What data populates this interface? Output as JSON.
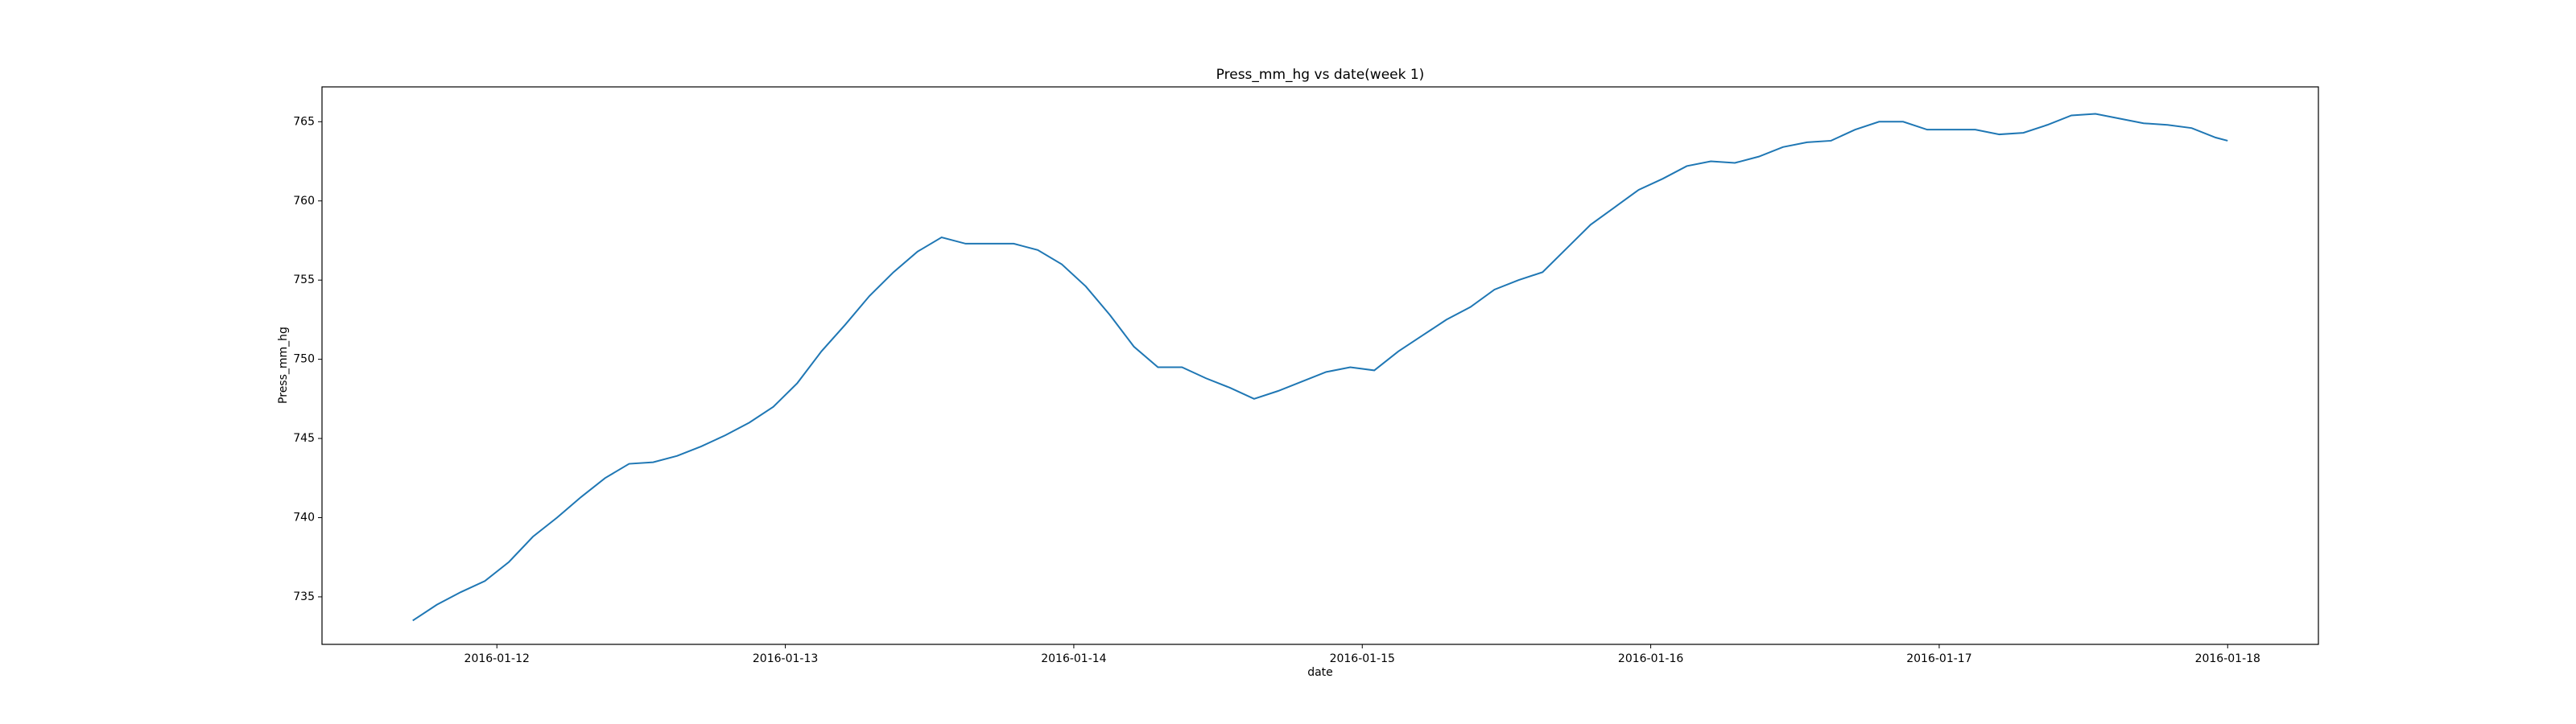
{
  "chart_data": {
    "type": "line",
    "title": "Press_mm_hg vs date(week 1)",
    "x_label": "date",
    "y_label": "Press_mm_hg",
    "x": [
      "2016-01-11T17:00",
      "2016-01-11T19:00",
      "2016-01-11T21:00",
      "2016-01-11T23:00",
      "2016-01-12T01:00",
      "2016-01-12T03:00",
      "2016-01-12T05:00",
      "2016-01-12T07:00",
      "2016-01-12T09:00",
      "2016-01-12T11:00",
      "2016-01-12T13:00",
      "2016-01-12T15:00",
      "2016-01-12T17:00",
      "2016-01-12T19:00",
      "2016-01-12T21:00",
      "2016-01-12T23:00",
      "2016-01-13T01:00",
      "2016-01-13T03:00",
      "2016-01-13T05:00",
      "2016-01-13T07:00",
      "2016-01-13T09:00",
      "2016-01-13T11:00",
      "2016-01-13T13:00",
      "2016-01-13T15:00",
      "2016-01-13T17:00",
      "2016-01-13T19:00",
      "2016-01-13T21:00",
      "2016-01-13T23:00",
      "2016-01-14T01:00",
      "2016-01-14T03:00",
      "2016-01-14T05:00",
      "2016-01-14T07:00",
      "2016-01-14T09:00",
      "2016-01-14T11:00",
      "2016-01-14T13:00",
      "2016-01-14T15:00",
      "2016-01-14T17:00",
      "2016-01-14T19:00",
      "2016-01-14T21:00",
      "2016-01-14T23:00",
      "2016-01-15T01:00",
      "2016-01-15T03:00",
      "2016-01-15T05:00",
      "2016-01-15T07:00",
      "2016-01-15T09:00",
      "2016-01-15T11:00",
      "2016-01-15T13:00",
      "2016-01-15T15:00",
      "2016-01-15T17:00",
      "2016-01-15T19:00",
      "2016-01-15T21:00",
      "2016-01-15T23:00",
      "2016-01-16T01:00",
      "2016-01-16T03:00",
      "2016-01-16T05:00",
      "2016-01-16T07:00",
      "2016-01-16T09:00",
      "2016-01-16T11:00",
      "2016-01-16T13:00",
      "2016-01-16T15:00",
      "2016-01-16T17:00",
      "2016-01-16T19:00",
      "2016-01-16T21:00",
      "2016-01-16T23:00",
      "2016-01-17T01:00",
      "2016-01-17T03:00",
      "2016-01-17T05:00",
      "2016-01-17T07:00",
      "2016-01-17T09:00",
      "2016-01-17T11:00",
      "2016-01-17T13:00",
      "2016-01-17T15:00",
      "2016-01-17T17:00",
      "2016-01-17T19:00",
      "2016-01-17T21:00",
      "2016-01-17T23:00",
      "2016-01-18T00:00"
    ],
    "series": [
      {
        "name": "Press_mm_hg",
        "color": "#1f77b4",
        "values": [
          733.5,
          734.5,
          735.3,
          736.0,
          737.2,
          738.8,
          740.0,
          741.3,
          742.5,
          743.4,
          743.5,
          743.9,
          744.5,
          745.2,
          746.0,
          747.0,
          748.5,
          750.5,
          752.2,
          754.0,
          755.5,
          756.8,
          757.7,
          757.3,
          757.3,
          757.3,
          756.9,
          756.0,
          754.6,
          752.8,
          750.8,
          749.5,
          749.5,
          748.8,
          748.2,
          747.5,
          748.0,
          748.6,
          749.2,
          749.5,
          749.3,
          750.5,
          751.5,
          752.5,
          753.3,
          754.4,
          755.0,
          755.5,
          757.0,
          758.5,
          759.6,
          760.7,
          761.4,
          762.2,
          762.5,
          762.4,
          762.8,
          763.4,
          763.7,
          763.8,
          764.5,
          765.0,
          765.0,
          764.5,
          764.5,
          764.5,
          764.2,
          764.3,
          764.8,
          765.4,
          765.5,
          765.2,
          764.9,
          764.8,
          764.6,
          764.0,
          763.8
        ]
      }
    ],
    "xlim": [
      "2016-01-11T09:27",
      "2016-01-18T07:33"
    ],
    "xticks": [
      "2016-01-12",
      "2016-01-13",
      "2016-01-14",
      "2016-01-15",
      "2016-01-16",
      "2016-01-17",
      "2016-01-18"
    ],
    "ylim": [
      732.0,
      767.2
    ],
    "yticks": [
      735,
      740,
      745,
      750,
      755,
      760,
      765
    ],
    "grid": false
  }
}
